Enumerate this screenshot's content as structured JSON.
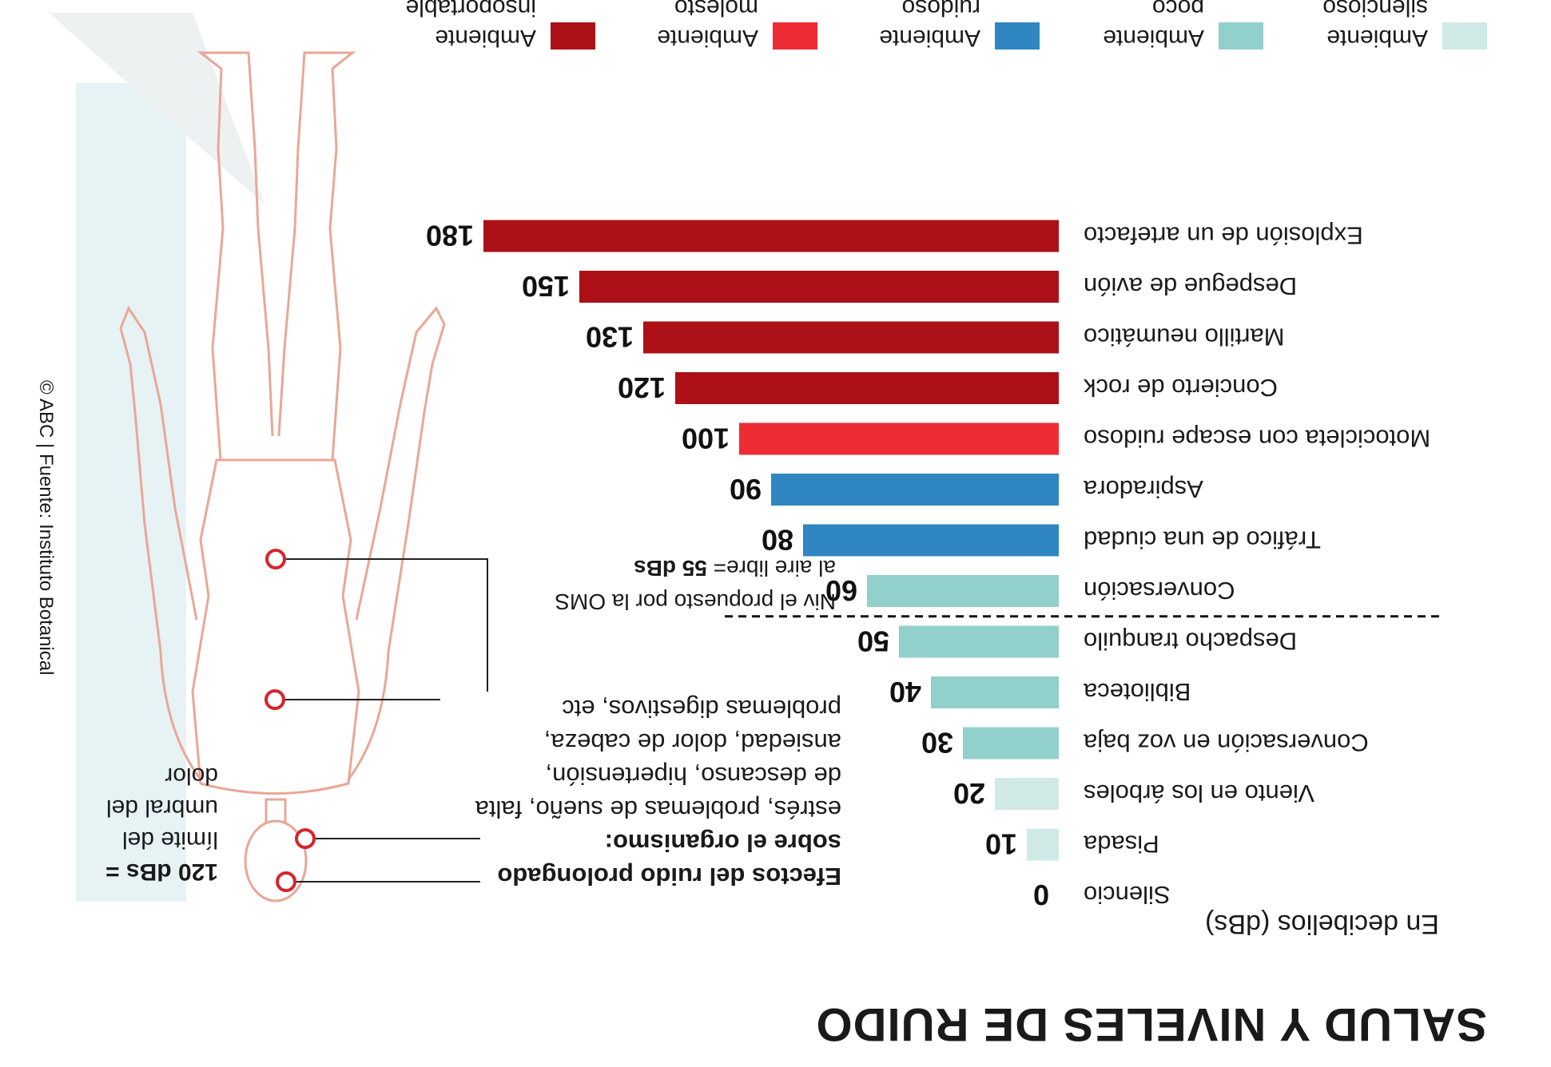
{
  "chart_data": {
    "type": "bar",
    "orientation": "horizontal",
    "title": "SALUD Y NIVELES DE RUIDO",
    "subtitle": "En decibelios (dBs)",
    "categories": [
      "Silencio",
      "Pisada",
      "Viento en los árboles",
      "Conversación en voz baja",
      "Biblioteca",
      "Despacho tranquilo",
      "Conversación",
      "Tráfico de una ciudad",
      "Aspiradora",
      "Motocicleta con escape ruidoso",
      "Concierto de rock",
      "Martillo neumático",
      "Despegue de avión",
      "Explosión de un artefacto"
    ],
    "values": [
      0,
      10,
      20,
      30,
      40,
      50,
      60,
      80,
      90,
      100,
      120,
      130,
      150,
      180
    ],
    "value_labels": [
      "0",
      "10",
      "20",
      "30",
      "40",
      "50",
      "60",
      "80",
      "90",
      "100",
      "120",
      "130",
      "150",
      "180"
    ],
    "levels": [
      "silencioso",
      "silencioso",
      "silencioso",
      "poco ruidoso",
      "poco ruidoso",
      "poco ruidoso",
      "poco ruidoso",
      "ruidoso",
      "ruidoso",
      "molesto",
      "insoportable",
      "insoportable",
      "insoportable",
      "insoportable"
    ],
    "xlim": [
      0,
      180
    ],
    "reference_line": {
      "value": 55,
      "label_line1": "Niv el propuesto por la OMS",
      "label_line2": "al aire libre=",
      "label_value": "55 dBs"
    },
    "legend": [
      {
        "id": "silencioso",
        "label": "Ambiente silencioso",
        "color": "#cfe9e6"
      },
      {
        "id": "poco ruidoso",
        "label": "Ambiente poco ruidoso",
        "color": "#92d0cb"
      },
      {
        "id": "ruidoso",
        "label": "Ambiente ruidoso",
        "color": "#2f86c0"
      },
      {
        "id": "molesto",
        "label": "Ambiente molesto",
        "color": "#ee2c36"
      },
      {
        "id": "insoportable",
        "label": "Ambiente insoportable",
        "color": "#ab1116"
      }
    ],
    "legend_position": "bottom"
  },
  "effects": {
    "title": "Efectos del ruido prolongado sobre el organismo:",
    "text": "estrés, problemas de sueño, falta de descanso, hipertensión, ansiedad, dolor de cabeza, problemas digestivos, etc"
  },
  "pain_threshold": {
    "value": "120 dBs =",
    "text": "límite del umbral del dolor"
  },
  "credit": "© ABC | Fuente: Instituto Botanical",
  "colors": {
    "marker": "#d6242c",
    "figure": "#e9a796",
    "figure_background": "#e7f2f5"
  },
  "figure_icon": "wireframe-human-body-icon"
}
